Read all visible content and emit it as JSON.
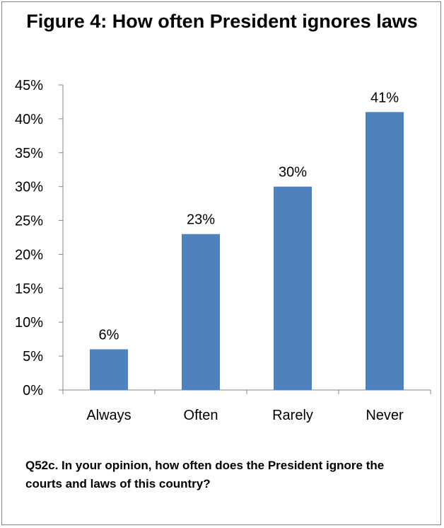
{
  "chart_data": {
    "type": "bar",
    "title": "Figure 4: How often President ignores laws",
    "categories": [
      "Always",
      "Often",
      "Rarely",
      "Never"
    ],
    "values": [
      6,
      23,
      30,
      41
    ],
    "data_labels": [
      "6%",
      "23%",
      "30%",
      "41%"
    ],
    "y_ticks": [
      0,
      5,
      10,
      15,
      20,
      25,
      30,
      35,
      40,
      45
    ],
    "y_tick_labels": [
      "0%",
      "5%",
      "10%",
      "15%",
      "20%",
      "25%",
      "30%",
      "35%",
      "40%",
      "45%"
    ],
    "ylim": [
      0,
      45
    ],
    "grid": false,
    "bar_color": "#4f81bd",
    "legend": "none"
  },
  "caption": "Q52c. In your opinion, how often does the President ignore the courts and laws of this country?"
}
